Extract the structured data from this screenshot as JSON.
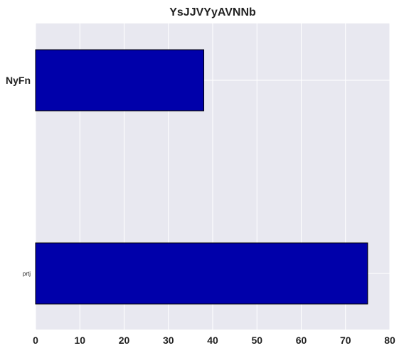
{
  "chart_data": {
    "type": "bar",
    "orientation": "horizontal",
    "title": "YsJJVYyAVNNb",
    "categories": [
      "NyFn",
      "prtj"
    ],
    "values": [
      38,
      75
    ],
    "xlabel": "",
    "ylabel": "",
    "xlim": [
      0,
      80
    ],
    "x_ticks": [
      "0",
      "10",
      "20",
      "30",
      "40",
      "50",
      "60",
      "70",
      "80"
    ],
    "grid": true,
    "bar_color": "#0000aa",
    "edge_color": "#000000",
    "plot_background": "#e8e8f0"
  }
}
